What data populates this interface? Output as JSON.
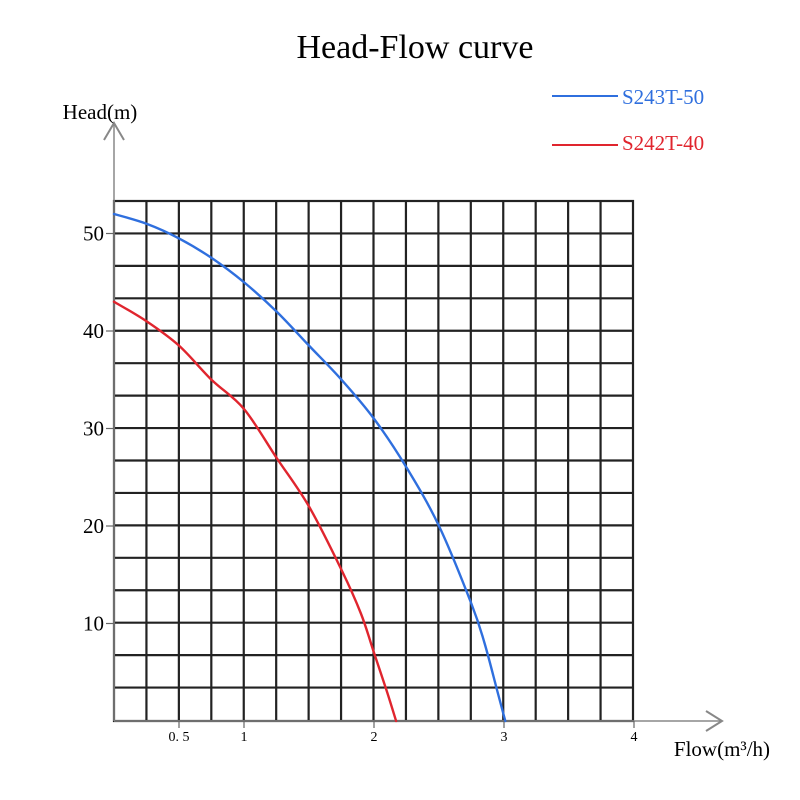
{
  "chart_data": {
    "type": "line",
    "title": "Head-Flow curve",
    "xlabel": "Flow(m³/h)",
    "ylabel": "Head(m)",
    "x_ticks": [
      {
        "value": 0.5,
        "label": "0. 5"
      },
      {
        "value": 1,
        "label": "1"
      },
      {
        "value": 2,
        "label": "2"
      },
      {
        "value": 3,
        "label": "3"
      },
      {
        "value": 4,
        "label": "4"
      }
    ],
    "y_ticks": [
      {
        "value": 10,
        "label": "10"
      },
      {
        "value": 20,
        "label": "20"
      },
      {
        "value": 30,
        "label": "30"
      },
      {
        "value": 40,
        "label": "40"
      },
      {
        "value": 50,
        "label": "50"
      }
    ],
    "grid": true,
    "legend_position": "top-right",
    "series": [
      {
        "name": "S243T-50",
        "color": "#2f6fde",
        "x": [
          0,
          0.25,
          0.5,
          0.75,
          1.0,
          1.25,
          1.5,
          1.75,
          2.0,
          2.25,
          2.5,
          2.75,
          2.85,
          2.95,
          3.01
        ],
        "y": [
          52,
          51,
          49.5,
          47.5,
          45,
          42,
          38.5,
          35,
          31,
          26,
          20,
          12,
          8,
          3,
          0
        ]
      },
      {
        "name": "S242T-40",
        "color": "#e0252e",
        "x": [
          0,
          0.25,
          0.5,
          0.75,
          1.0,
          1.25,
          1.5,
          1.75,
          1.9,
          2.0,
          2.1,
          2.17
        ],
        "y": [
          43,
          41,
          38.5,
          35,
          32,
          27,
          22,
          15.5,
          11,
          7,
          3,
          0
        ]
      }
    ]
  }
}
